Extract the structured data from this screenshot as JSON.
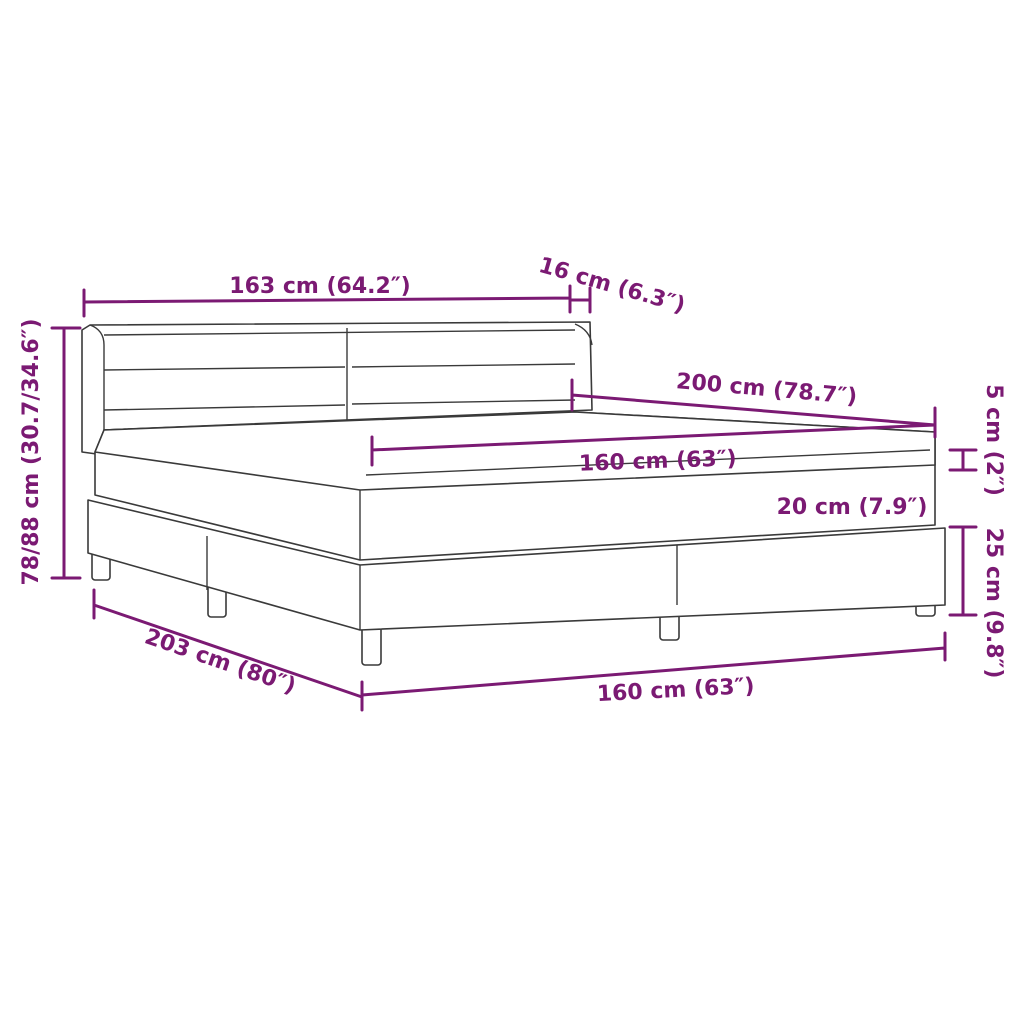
{
  "accent_color": "#7b1a73",
  "dimensions": {
    "headboard_width": "163 cm (64.2″)",
    "headboard_depth": "16 cm (6.3″)",
    "mattress_length": "200 cm (78.7″)",
    "mattress_width": "160 cm (63″)",
    "total_height": "78/88 cm (30.7/34.6″)",
    "topper_height": "5 cm (2″)",
    "mattress_height": "20 cm (7.9″)",
    "base_height": "25 cm (9.8″)",
    "total_length": "203 cm (80″)",
    "base_width": "160 cm (63″)"
  }
}
